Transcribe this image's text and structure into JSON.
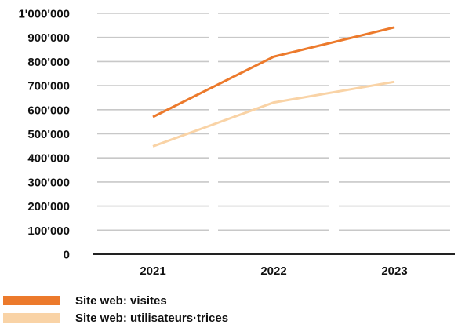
{
  "chart_data": {
    "type": "line",
    "categories": [
      "2021",
      "2022",
      "2023"
    ],
    "series": [
      {
        "name": "Site web: visites",
        "values": [
          570000,
          820000,
          942000
        ],
        "color": "#EC7A2C"
      },
      {
        "name": "Site web: utilisateurs·trices",
        "values": [
          448000,
          630000,
          716000
        ],
        "color": "#F9D3A6"
      }
    ],
    "ylim": [
      0,
      1000000
    ],
    "yticks": [
      0,
      100000,
      200000,
      300000,
      400000,
      500000,
      600000,
      700000,
      800000,
      900000,
      1000000
    ],
    "ytick_labels": [
      "0",
      "100'000",
      "200'000",
      "300'000",
      "400'000",
      "500'000",
      "600'000",
      "700'000",
      "800'000",
      "900'000",
      "1'000'000"
    ],
    "grid": true,
    "legend_position": "bottom-left",
    "title": "",
    "xlabel": "",
    "ylabel": "",
    "gridline_color": "#C8C8C8",
    "axis_color": "#222222"
  }
}
